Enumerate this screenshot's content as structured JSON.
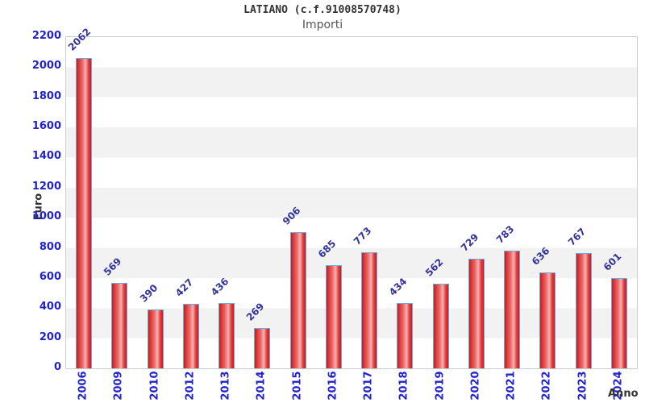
{
  "page": {
    "title": "LATIANO (c.f.91008570748)",
    "subtitle": "Importi"
  },
  "chart_data": {
    "type": "bar",
    "title": "LATIANO (c.f.91008570748)",
    "subtitle": "Importi",
    "xlabel": "Anno",
    "ylabel": "Euro",
    "categories": [
      "2006",
      "2009",
      "2010",
      "2012",
      "2013",
      "2014",
      "2015",
      "2016",
      "2017",
      "2018",
      "2019",
      "2020",
      "2021",
      "2022",
      "2023",
      "2024"
    ],
    "values": [
      2062,
      569,
      390,
      427,
      436,
      269,
      906,
      685,
      773,
      434,
      562,
      729,
      783,
      636,
      767,
      601
    ],
    "ylim": [
      0,
      2200
    ],
    "ytick_step": 200,
    "yticks": [
      0,
      200,
      400,
      600,
      800,
      1000,
      1200,
      1400,
      1600,
      1800,
      2000,
      2200
    ],
    "grid": "alternating horizontal bands every 200 units",
    "legend": "none",
    "value_labels": "rotated 45deg above each bar",
    "category_labels": "rotated 90deg below axis",
    "colors": {
      "tick_blue": "#2222cc",
      "value_label": "#333399",
      "bar_edge": "#cf1a1a",
      "bar_mid": "#f6b2b2",
      "bar_border": "#6aaae4",
      "band_gray": "#f2f2f2",
      "band_white": "#ffffff",
      "plot_border": "#cccccc",
      "text_dark": "#333333",
      "subtitle": "#555555"
    }
  }
}
